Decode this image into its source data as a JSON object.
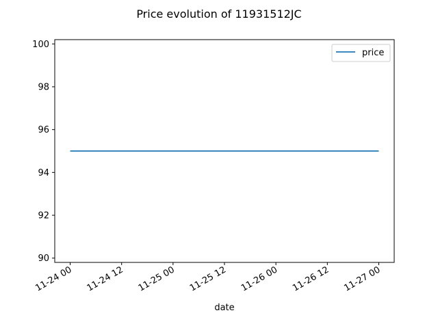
{
  "chart_data": {
    "type": "line",
    "title": "Price evolution of 11931512JC",
    "xlabel": "date",
    "ylabel": "",
    "x_tick_labels": [
      "11-24 00",
      "11-24 12",
      "11-25 00",
      "11-25 12",
      "11-26 00",
      "11-26 12",
      "11-27 00"
    ],
    "y_ticks": [
      90,
      92,
      94,
      96,
      98,
      100
    ],
    "ylim": [
      89.8,
      100.2
    ],
    "xlim_hours": [
      -3.6,
      75.6
    ],
    "series": [
      {
        "name": "price",
        "color": "#1f77b4",
        "x": [
          "11-24 00",
          "11-27 00"
        ],
        "y": [
          95,
          95
        ]
      }
    ],
    "legend_position": "upper right",
    "grid": false
  }
}
